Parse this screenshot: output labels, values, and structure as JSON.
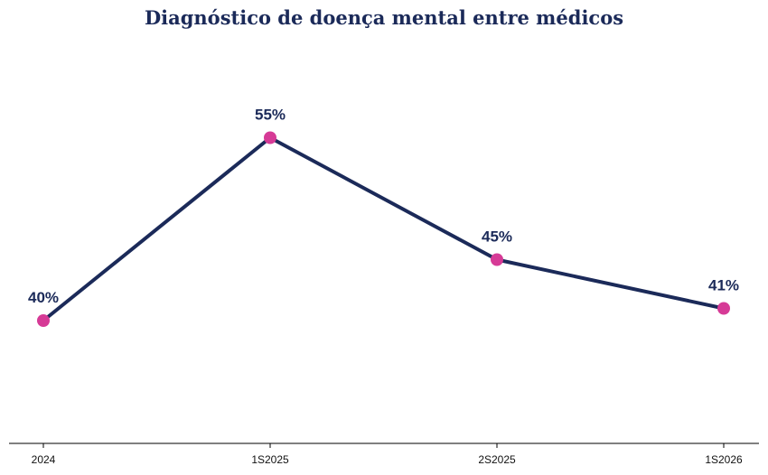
{
  "chart_data": {
    "type": "line",
    "title": "Diagnóstico de doença mental entre médicos",
    "xlabel": "",
    "ylabel": "",
    "categories": [
      "2024",
      "1S2025",
      "2S2025",
      "1S2026"
    ],
    "series": [
      {
        "values": [
          40,
          55,
          45,
          41
        ],
        "data_labels": [
          "40%",
          "55%",
          "45%",
          "41%"
        ]
      }
    ],
    "ylim": [
      25,
      65
    ],
    "grid": false,
    "legend": "none",
    "colors": {
      "line": "#1b2a59",
      "marker": "#d63a96",
      "title": "#1b2a59",
      "axis": "#000000"
    }
  }
}
